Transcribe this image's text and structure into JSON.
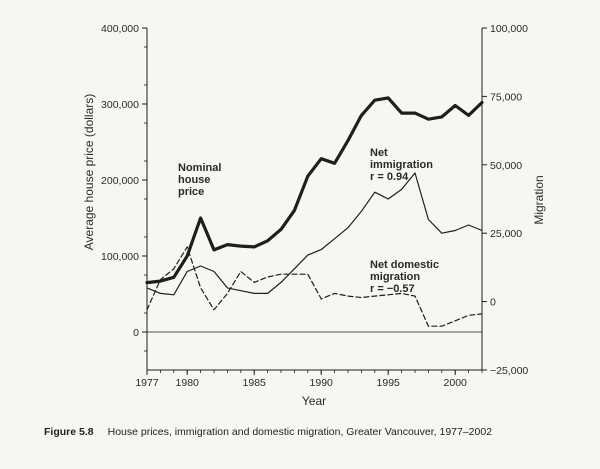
{
  "chart_data": {
    "type": "line",
    "x": [
      1977,
      1978,
      1979,
      1980,
      1981,
      1982,
      1983,
      1984,
      1985,
      1986,
      1987,
      1988,
      1989,
      1990,
      1991,
      1992,
      1993,
      1994,
      1995,
      1996,
      1997,
      1998,
      1999,
      2000,
      2001,
      2002
    ],
    "xlabel": "Year",
    "xlim": [
      1977,
      2002
    ],
    "xticks": [
      "1977",
      "1980",
      "1985",
      "1990",
      "1995",
      "2000"
    ],
    "xtick_values": [
      1977,
      1980,
      1985,
      1990,
      1995,
      2000
    ],
    "ylabel_left": "Average house price (dollars)",
    "ylim_left": [
      -50000,
      400000
    ],
    "yticks_left": [
      "0",
      "100,000",
      "200,000",
      "300,000",
      "400,000"
    ],
    "ytick_values_left": [
      0,
      100000,
      200000,
      300000,
      400000
    ],
    "ylabel_right": "Migration",
    "ylim_right": [
      -25000,
      100000
    ],
    "yticks_right": [
      "−25,000",
      "0",
      "25,000",
      "50,000",
      "75,000",
      "100,000"
    ],
    "ytick_values_right": [
      -25000,
      0,
      25000,
      50000,
      75000,
      100000
    ],
    "grid": false,
    "legend": "none",
    "series": [
      {
        "name": "Nominal house price",
        "axis": "left",
        "style": "thick-solid",
        "values": [
          65000,
          67000,
          72000,
          100000,
          150000,
          108000,
          115000,
          113000,
          112000,
          120000,
          135000,
          160000,
          205000,
          228000,
          222000,
          252000,
          285000,
          305000,
          308000,
          288000,
          288000,
          280000,
          283000,
          298000,
          285000,
          302000
        ]
      },
      {
        "name": "Net immigration",
        "axis": "right",
        "style": "thin-solid",
        "values": [
          5000,
          3000,
          2500,
          11000,
          13000,
          11000,
          5000,
          4000,
          3000,
          3000,
          7000,
          12000,
          17000,
          19000,
          23000,
          27000,
          33000,
          40000,
          37500,
          41000,
          47000,
          30000,
          25000,
          26000,
          28000,
          26000
        ]
      },
      {
        "name": "Net domestic migration",
        "axis": "right",
        "style": "dashed",
        "values": [
          -3000,
          8000,
          12000,
          20000,
          5000,
          -3000,
          3000,
          11000,
          7000,
          9000,
          10000,
          10000,
          10000,
          1000,
          3000,
          2000,
          1500,
          2000,
          2500,
          3000,
          2000,
          -9000,
          -9000,
          -7000,
          -5000,
          -4500
        ]
      }
    ],
    "annotations": [
      {
        "lines": [
          "Nominal",
          "house",
          "price"
        ]
      },
      {
        "lines": [
          "Net",
          "immigration",
          "r = 0.94"
        ]
      },
      {
        "lines": [
          "Net domestic",
          "migration",
          "r = −0.57"
        ]
      }
    ]
  },
  "caption": {
    "label": "Figure 5.8",
    "text": "House prices, immigration and domestic migration, Greater Vancouver, 1977–2002"
  },
  "colors": {
    "line": "#1e1e1e",
    "background": "#f6f6f3"
  }
}
